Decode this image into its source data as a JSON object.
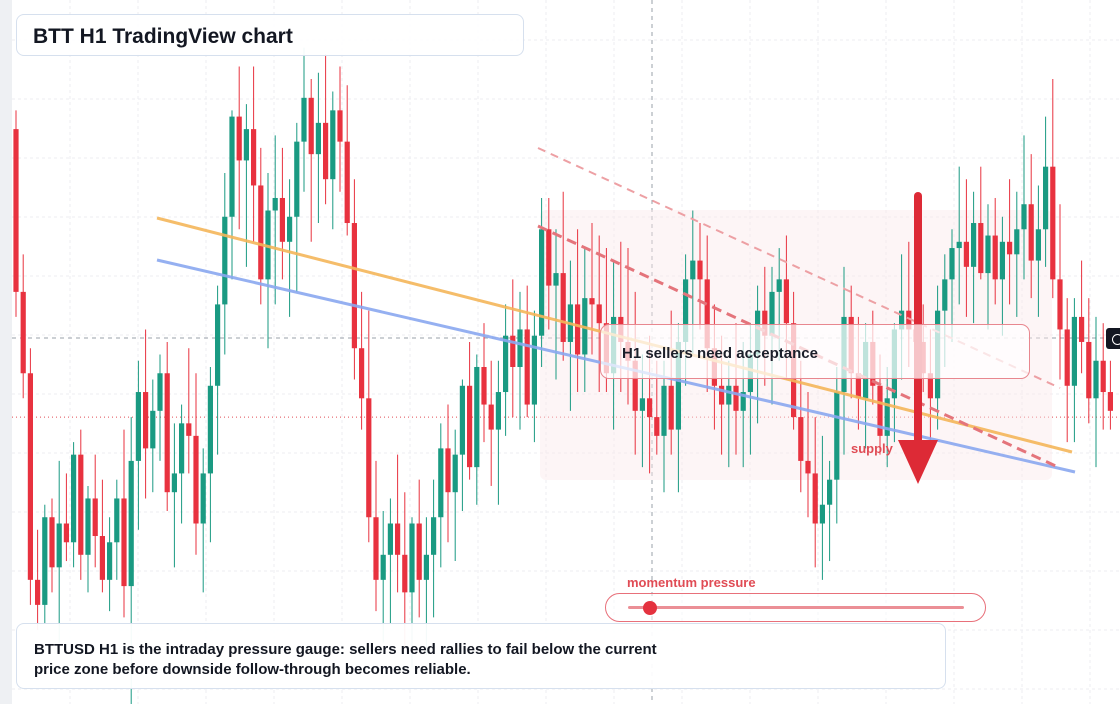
{
  "header": {
    "title": "BTT H1 TradingView chart"
  },
  "callout": {
    "text": "H1 sellers need acceptance"
  },
  "zone": {
    "label": "supply"
  },
  "gauge": {
    "label": "momentum pressure",
    "level": 0.06
  },
  "note": {
    "text": "BTTUSD H1 is the intraday pressure gauge: sellers need rallies to fail below the current price zone before downside follow-through becomes reliable."
  },
  "colors": {
    "up": "#1a9a82",
    "down": "#e8323f",
    "orange_line": "#f5b65a",
    "blue_line": "#8aa8f0",
    "accent": "#e04c55"
  },
  "icons": {
    "crosshair": "crosshair-plus-icon",
    "arrow": "down-arrow-icon"
  },
  "chart_data": {
    "type": "candlestick",
    "symbol": "BTTUSD",
    "timeframe": "H1",
    "title": "",
    "xlabel": "",
    "ylabel": "",
    "grid": true,
    "y_range": [
      0,
      100
    ],
    "candles": [
      [
        88,
        91,
        58,
        62
      ],
      [
        62,
        68,
        45,
        49
      ],
      [
        49,
        53,
        12,
        16
      ],
      [
        16,
        24,
        8,
        12
      ],
      [
        12,
        28,
        9,
        26
      ],
      [
        26,
        29,
        14,
        18
      ],
      [
        18,
        35,
        6,
        25
      ],
      [
        25,
        33,
        19,
        22
      ],
      [
        22,
        38,
        18,
        36
      ],
      [
        36,
        40,
        16,
        20
      ],
      [
        20,
        31,
        14,
        29
      ],
      [
        29,
        36,
        18,
        23
      ],
      [
        23,
        32,
        14,
        16
      ],
      [
        16,
        26,
        11,
        22
      ],
      [
        22,
        32,
        16,
        29
      ],
      [
        29,
        40,
        10,
        15
      ],
      [
        15,
        42,
        -8,
        35
      ],
      [
        35,
        51,
        24,
        46
      ],
      [
        46,
        56,
        29,
        37
      ],
      [
        37,
        48,
        30,
        43
      ],
      [
        43,
        52,
        35,
        49
      ],
      [
        49,
        54,
        27,
        30
      ],
      [
        30,
        41,
        18,
        33
      ],
      [
        33,
        44,
        25,
        41
      ],
      [
        41,
        53,
        33,
        39
      ],
      [
        39,
        49,
        20,
        25
      ],
      [
        25,
        37,
        14,
        33
      ],
      [
        33,
        50,
        22,
        47
      ],
      [
        47,
        63,
        36,
        60
      ],
      [
        60,
        81,
        52,
        74
      ],
      [
        74,
        91,
        64,
        90
      ],
      [
        90,
        98,
        72,
        83
      ],
      [
        83,
        92,
        66,
        88
      ],
      [
        88,
        98,
        70,
        79
      ],
      [
        79,
        85,
        60,
        64
      ],
      [
        64,
        81,
        53,
        75
      ],
      [
        75,
        87,
        60,
        77
      ],
      [
        77,
        85,
        64,
        70
      ],
      [
        70,
        80,
        58,
        74
      ],
      [
        74,
        89,
        62,
        86
      ],
      [
        86,
        101,
        78,
        93
      ],
      [
        93,
        96,
        70,
        84
      ],
      [
        84,
        97,
        73,
        89
      ],
      [
        89,
        100,
        76,
        80
      ],
      [
        80,
        94,
        72,
        91
      ],
      [
        91,
        98,
        78,
        86
      ],
      [
        86,
        95,
        71,
        73
      ],
      [
        73,
        80,
        48,
        53
      ],
      [
        53,
        62,
        40,
        45
      ],
      [
        45,
        59,
        22,
        26
      ],
      [
        26,
        35,
        11,
        16
      ],
      [
        16,
        27,
        6,
        20
      ],
      [
        20,
        29,
        9,
        25
      ],
      [
        25,
        36,
        14,
        20
      ],
      [
        20,
        30,
        5,
        14
      ],
      [
        14,
        26,
        2,
        25
      ],
      [
        25,
        32,
        10,
        16
      ],
      [
        16,
        26,
        4,
        20
      ],
      [
        20,
        32,
        10,
        26
      ],
      [
        26,
        41,
        18,
        37
      ],
      [
        37,
        44,
        22,
        30
      ],
      [
        30,
        40,
        19,
        36
      ],
      [
        36,
        48,
        27,
        47
      ],
      [
        47,
        54,
        32,
        34
      ],
      [
        34,
        52,
        28,
        50
      ],
      [
        50,
        57,
        38,
        44
      ],
      [
        44,
        51,
        31,
        40
      ],
      [
        40,
        51,
        28,
        46
      ],
      [
        46,
        60,
        39,
        55
      ],
      [
        55,
        64,
        42,
        50
      ],
      [
        50,
        62,
        40,
        56
      ],
      [
        56,
        63,
        42,
        44
      ],
      [
        44,
        59,
        38,
        55
      ],
      [
        55,
        77,
        50,
        72
      ],
      [
        72,
        77,
        56,
        63
      ],
      [
        63,
        72,
        48,
        65
      ],
      [
        65,
        78,
        51,
        54
      ],
      [
        54,
        67,
        43,
        60
      ],
      [
        60,
        72,
        46,
        52
      ],
      [
        52,
        69,
        46,
        61
      ],
      [
        61,
        73,
        52,
        60
      ],
      [
        60,
        71,
        46,
        57
      ],
      [
        57,
        69,
        46,
        49
      ],
      [
        49,
        67,
        40,
        58
      ],
      [
        58,
        70,
        46,
        54
      ],
      [
        54,
        69,
        44,
        51
      ],
      [
        51,
        62,
        36,
        43
      ],
      [
        43,
        52,
        34,
        45
      ],
      [
        45,
        55,
        33,
        42
      ],
      [
        42,
        51,
        36,
        39
      ],
      [
        39,
        51,
        30,
        47
      ],
      [
        47,
        59,
        36,
        40
      ],
      [
        40,
        57,
        30,
        54
      ],
      [
        54,
        68,
        47,
        64
      ],
      [
        64,
        75,
        52,
        67
      ],
      [
        67,
        73,
        56,
        64
      ],
      [
        64,
        71,
        46,
        53
      ],
      [
        53,
        60,
        40,
        47
      ],
      [
        47,
        55,
        36,
        44
      ],
      [
        44,
        51,
        34,
        47
      ],
      [
        47,
        57,
        36,
        43
      ],
      [
        43,
        54,
        34,
        46
      ],
      [
        46,
        57,
        36,
        52
      ],
      [
        52,
        63,
        41,
        59
      ],
      [
        59,
        66,
        47,
        55
      ],
      [
        55,
        66,
        44,
        62
      ],
      [
        62,
        69,
        51,
        64
      ],
      [
        64,
        71,
        48,
        57
      ],
      [
        57,
        62,
        40,
        42
      ],
      [
        42,
        51,
        30,
        35
      ],
      [
        35,
        46,
        26,
        33
      ],
      [
        33,
        42,
        18,
        25
      ],
      [
        25,
        39,
        16,
        28
      ],
      [
        28,
        35,
        19,
        32
      ],
      [
        32,
        50,
        25,
        46
      ],
      [
        46,
        66,
        36,
        58
      ],
      [
        58,
        63,
        45,
        49
      ],
      [
        49,
        58,
        40,
        45
      ],
      [
        45,
        57,
        37,
        54
      ],
      [
        54,
        59,
        44,
        47
      ],
      [
        47,
        52,
        36,
        39
      ],
      [
        39,
        50,
        34,
        45
      ],
      [
        45,
        57,
        38,
        56
      ],
      [
        56,
        68,
        48,
        59
      ],
      [
        59,
        70,
        50,
        56
      ],
      [
        56,
        63,
        44,
        54
      ],
      [
        54,
        60,
        46,
        49
      ],
      [
        49,
        56,
        38,
        45
      ],
      [
        45,
        63,
        40,
        59
      ],
      [
        59,
        68,
        50,
        64
      ],
      [
        64,
        72,
        54,
        69
      ],
      [
        69,
        82,
        60,
        70
      ],
      [
        70,
        80,
        58,
        66
      ],
      [
        66,
        78,
        57,
        73
      ],
      [
        73,
        82,
        64,
        65
      ],
      [
        65,
        76,
        56,
        71
      ],
      [
        71,
        77,
        60,
        64
      ],
      [
        64,
        74,
        55,
        70
      ],
      [
        70,
        80,
        60,
        68
      ],
      [
        68,
        78,
        58,
        72
      ],
      [
        72,
        87,
        64,
        76
      ],
      [
        76,
        84,
        61,
        67
      ],
      [
        67,
        79,
        58,
        72
      ],
      [
        72,
        90,
        66,
        82
      ],
      [
        82,
        96,
        61,
        64
      ],
      [
        64,
        76,
        48,
        56
      ],
      [
        56,
        61,
        38,
        47
      ],
      [
        47,
        61,
        38,
        58
      ],
      [
        58,
        67,
        49,
        54
      ],
      [
        54,
        61,
        41,
        45
      ],
      [
        45,
        58,
        34,
        51
      ],
      [
        51,
        57,
        40,
        46
      ],
      [
        46,
        51,
        40,
        43
      ]
    ],
    "overlays": [
      "orange trendline",
      "blue trendline",
      "descending dashed red lines",
      "supply zone"
    ],
    "current_price_line": 42
  }
}
